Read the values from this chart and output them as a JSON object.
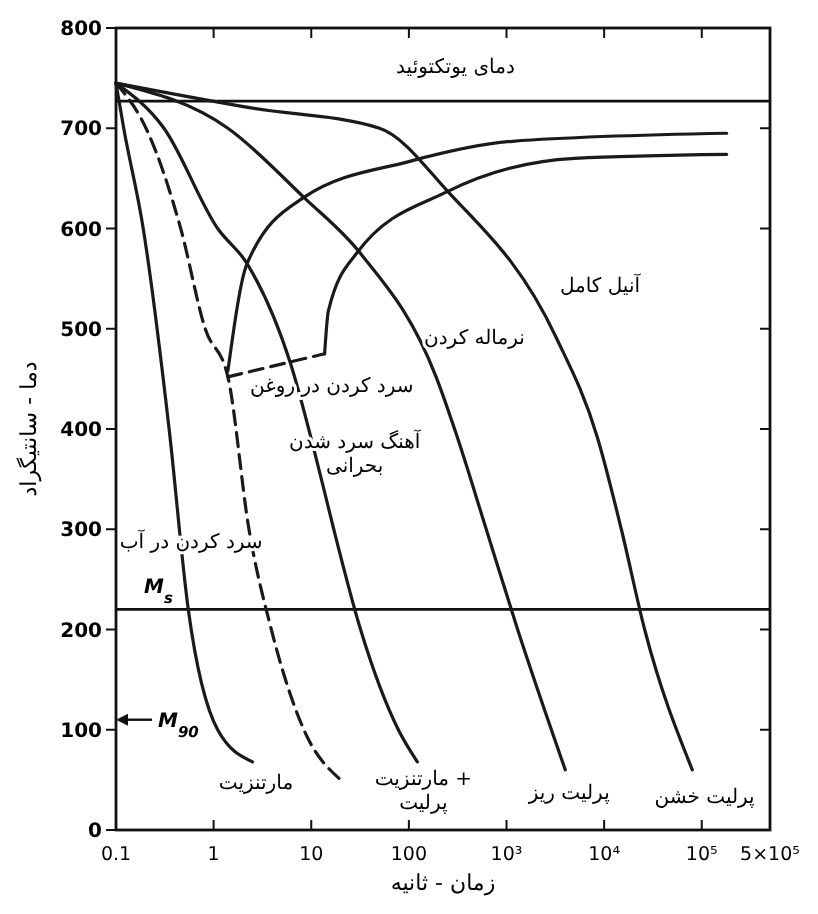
{
  "chart_data": {
    "type": "line",
    "xlabel": "زمان - ثانیه",
    "ylabel": "دما - سانتیگراد",
    "log": "x",
    "xlim": [
      0.1,
      500000
    ],
    "ylim": [
      0,
      800
    ],
    "xticks": [
      0.1,
      1,
      10,
      100,
      {
        "value": 1000,
        "label": "10³"
      },
      {
        "value": 10000,
        "label": "10⁴"
      },
      {
        "value": 100000,
        "label": "10⁵"
      },
      {
        "value": 500000,
        "label": "5×10⁵"
      }
    ],
    "yticks": [
      0,
      100,
      200,
      300,
      400,
      500,
      600,
      700,
      800
    ],
    "grid": false,
    "marker": "none",
    "series": [
      {
        "color": "#1a1a1a",
        "line_style": "solid",
        "x": [
          0.1,
          0.12,
          0.19,
          0.35,
          0.55,
          1.1,
          2.5
        ],
        "values": [
          745,
          700,
          600,
          400,
          220,
          100,
          68
        ]
      },
      {
        "color": "#1a1a1a",
        "line_style": "dashed",
        "x": [
          0.1,
          0.21,
          0.46,
          0.82,
          1.4,
          2.3,
          3.9,
          8.4,
          20
        ],
        "values": [
          745,
          697,
          600,
          500,
          452,
          300,
          200,
          100,
          50
        ]
      },
      {
        "color": "#1a1a1a",
        "line_style": "solid",
        "x": [
          0.1,
          0.31,
          1.1,
          2.2,
          6.1,
          13,
          17,
          32,
          78,
          122
        ],
        "values": [
          745,
          700,
          600,
          565,
          466,
          346,
          300,
          200,
          100,
          68
        ]
      },
      {
        "color": "#1a1a1a",
        "line_style": "solid",
        "x": [
          0.1,
          1.4,
          8.4,
          32,
          190,
          313,
          620,
          1300,
          4000
        ],
        "values": [
          745,
          700,
          631,
          575,
          452,
          392,
          300,
          200,
          60
        ]
      },
      {
        "color": "#1a1a1a",
        "line_style": "solid",
        "x": [
          0.1,
          2.5,
          50,
          250,
          3200,
          8500,
          15000,
          26000,
          80000
        ],
        "values": [
          745,
          720,
          700,
          637,
          492,
          392,
          300,
          200,
          60
        ]
      },
      {
        "color": "#1a1a1a",
        "line_style": "solid",
        "x": [
          1.4,
          2.2,
          8.4,
          102,
          1150,
          180000
        ],
        "values": [
          458,
          565,
          631,
          667,
          687,
          695
        ]
      },
      {
        "color": "#1a1a1a",
        "line_style": "solid",
        "x": [
          13.7,
          15,
          29,
          250,
          5000,
          180000
        ],
        "values": [
          475,
          518,
          575,
          637,
          670,
          674
        ]
      },
      {
        "color": "#1a1a1a",
        "line_style": "dashed",
        "x": [
          1.4,
          13.7
        ],
        "values": [
          452,
          475
        ]
      }
    ],
    "ref_lines": [
      {
        "axis": "y",
        "value": 727,
        "label": "دمای یوتکتوئید"
      },
      {
        "axis": "y",
        "value": 220,
        "label": "M$_{s}$"
      }
    ],
    "annotations": [
      "آنیل کامل",
      "نرماله کردن",
      "سرد کردن در روغن",
      "آهنگ سرد شدن\nبحرانی",
      "سرد کردن در آب",
      "M$_{90}$",
      "مارتنزیت",
      "مارتنزیت +\nپرلیت",
      "پرلیت ریز",
      "پرلیت خشن"
    ]
  }
}
